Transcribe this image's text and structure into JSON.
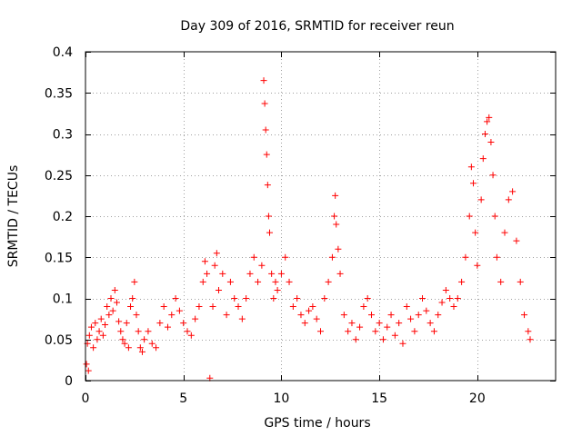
{
  "chart_data": {
    "type": "scatter",
    "title": "Day 309 of 2016, SRMTID for receiver reun",
    "xlabel": "GPS time / hours",
    "ylabel": "SRMTID / TECUs",
    "xlim": [
      0,
      24
    ],
    "ylim": [
      0,
      0.4
    ],
    "xticks": [
      0,
      5,
      10,
      15,
      20
    ],
    "xtick_labels": [
      "0",
      "5",
      "10",
      "15",
      "20"
    ],
    "yticks": [
      0,
      0.05,
      0.1,
      0.15,
      0.2,
      0.25,
      0.3,
      0.35,
      0.4
    ],
    "ytick_labels": [
      "0",
      "0.05",
      "0.1",
      "0.15",
      "0.2",
      "0.25",
      "0.3",
      "0.35",
      "0.4"
    ],
    "grid": true,
    "marker": "+",
    "color": "#ff0000",
    "series": [
      {
        "name": "SRMTID",
        "points": [
          [
            0.05,
            0.02
          ],
          [
            0.1,
            0.045
          ],
          [
            0.15,
            0.012
          ],
          [
            0.2,
            0.055
          ],
          [
            0.3,
            0.065
          ],
          [
            0.4,
            0.04
          ],
          [
            0.5,
            0.07
          ],
          [
            0.6,
            0.05
          ],
          [
            0.7,
            0.06
          ],
          [
            0.8,
            0.075
          ],
          [
            0.9,
            0.055
          ],
          [
            1.0,
            0.068
          ],
          [
            1.1,
            0.09
          ],
          [
            1.2,
            0.08
          ],
          [
            1.3,
            0.1
          ],
          [
            1.4,
            0.085
          ],
          [
            1.5,
            0.11
          ],
          [
            1.6,
            0.095
          ],
          [
            1.7,
            0.072
          ],
          [
            1.8,
            0.06
          ],
          [
            1.9,
            0.05
          ],
          [
            2.0,
            0.045
          ],
          [
            2.1,
            0.07
          ],
          [
            2.2,
            0.04
          ],
          [
            2.3,
            0.09
          ],
          [
            2.4,
            0.1
          ],
          [
            2.5,
            0.12
          ],
          [
            2.6,
            0.08
          ],
          [
            2.7,
            0.06
          ],
          [
            2.8,
            0.04
          ],
          [
            2.9,
            0.035
          ],
          [
            3.0,
            0.05
          ],
          [
            3.2,
            0.06
          ],
          [
            3.4,
            0.045
          ],
          [
            3.6,
            0.04
          ],
          [
            3.8,
            0.07
          ],
          [
            4.0,
            0.09
          ],
          [
            4.2,
            0.065
          ],
          [
            4.4,
            0.08
          ],
          [
            4.6,
            0.1
          ],
          [
            4.8,
            0.085
          ],
          [
            5.0,
            0.07
          ],
          [
            5.2,
            0.06
          ],
          [
            5.4,
            0.055
          ],
          [
            5.6,
            0.075
          ],
          [
            5.8,
            0.09
          ],
          [
            6.0,
            0.12
          ],
          [
            6.1,
            0.145
          ],
          [
            6.2,
            0.13
          ],
          [
            6.35,
            0.003
          ],
          [
            6.5,
            0.09
          ],
          [
            6.6,
            0.14
          ],
          [
            6.7,
            0.155
          ],
          [
            6.8,
            0.11
          ],
          [
            7.0,
            0.13
          ],
          [
            7.2,
            0.08
          ],
          [
            7.4,
            0.12
          ],
          [
            7.6,
            0.1
          ],
          [
            7.8,
            0.09
          ],
          [
            8.0,
            0.075
          ],
          [
            8.2,
            0.1
          ],
          [
            8.4,
            0.13
          ],
          [
            8.6,
            0.15
          ],
          [
            8.8,
            0.12
          ],
          [
            9.0,
            0.14
          ],
          [
            9.1,
            0.365
          ],
          [
            9.15,
            0.337
          ],
          [
            9.2,
            0.305
          ],
          [
            9.25,
            0.275
          ],
          [
            9.3,
            0.238
          ],
          [
            9.35,
            0.2
          ],
          [
            9.4,
            0.18
          ],
          [
            9.5,
            0.13
          ],
          [
            9.6,
            0.1
          ],
          [
            9.7,
            0.12
          ],
          [
            9.8,
            0.11
          ],
          [
            10.0,
            0.13
          ],
          [
            10.2,
            0.15
          ],
          [
            10.4,
            0.12
          ],
          [
            10.6,
            0.09
          ],
          [
            10.8,
            0.1
          ],
          [
            11.0,
            0.08
          ],
          [
            11.2,
            0.07
          ],
          [
            11.4,
            0.085
          ],
          [
            11.6,
            0.09
          ],
          [
            11.8,
            0.075
          ],
          [
            12.0,
            0.06
          ],
          [
            12.2,
            0.1
          ],
          [
            12.4,
            0.12
          ],
          [
            12.6,
            0.15
          ],
          [
            12.7,
            0.2
          ],
          [
            12.75,
            0.225
          ],
          [
            12.8,
            0.19
          ],
          [
            12.9,
            0.16
          ],
          [
            13.0,
            0.13
          ],
          [
            13.2,
            0.08
          ],
          [
            13.4,
            0.06
          ],
          [
            13.6,
            0.07
          ],
          [
            13.8,
            0.05
          ],
          [
            14.0,
            0.065
          ],
          [
            14.2,
            0.09
          ],
          [
            14.4,
            0.1
          ],
          [
            14.6,
            0.08
          ],
          [
            14.8,
            0.06
          ],
          [
            15.0,
            0.07
          ],
          [
            15.2,
            0.05
          ],
          [
            15.4,
            0.065
          ],
          [
            15.6,
            0.08
          ],
          [
            15.8,
            0.055
          ],
          [
            16.0,
            0.07
          ],
          [
            16.2,
            0.045
          ],
          [
            16.4,
            0.09
          ],
          [
            16.6,
            0.075
          ],
          [
            16.8,
            0.06
          ],
          [
            17.0,
            0.08
          ],
          [
            17.2,
            0.1
          ],
          [
            17.4,
            0.085
          ],
          [
            17.6,
            0.07
          ],
          [
            17.8,
            0.06
          ],
          [
            18.0,
            0.08
          ],
          [
            18.2,
            0.095
          ],
          [
            18.4,
            0.11
          ],
          [
            18.6,
            0.1
          ],
          [
            18.8,
            0.09
          ],
          [
            19.0,
            0.1
          ],
          [
            19.2,
            0.12
          ],
          [
            19.4,
            0.15
          ],
          [
            19.6,
            0.2
          ],
          [
            19.7,
            0.26
          ],
          [
            19.8,
            0.24
          ],
          [
            19.9,
            0.18
          ],
          [
            20.0,
            0.14
          ],
          [
            20.2,
            0.22
          ],
          [
            20.3,
            0.27
          ],
          [
            20.4,
            0.3
          ],
          [
            20.5,
            0.315
          ],
          [
            20.6,
            0.32
          ],
          [
            20.7,
            0.29
          ],
          [
            20.8,
            0.25
          ],
          [
            20.9,
            0.2
          ],
          [
            21.0,
            0.15
          ],
          [
            21.2,
            0.12
          ],
          [
            21.4,
            0.18
          ],
          [
            21.6,
            0.22
          ],
          [
            21.8,
            0.23
          ],
          [
            22.0,
            0.17
          ],
          [
            22.2,
            0.12
          ],
          [
            22.4,
            0.08
          ],
          [
            22.6,
            0.06
          ],
          [
            22.7,
            0.05
          ]
        ]
      }
    ]
  }
}
